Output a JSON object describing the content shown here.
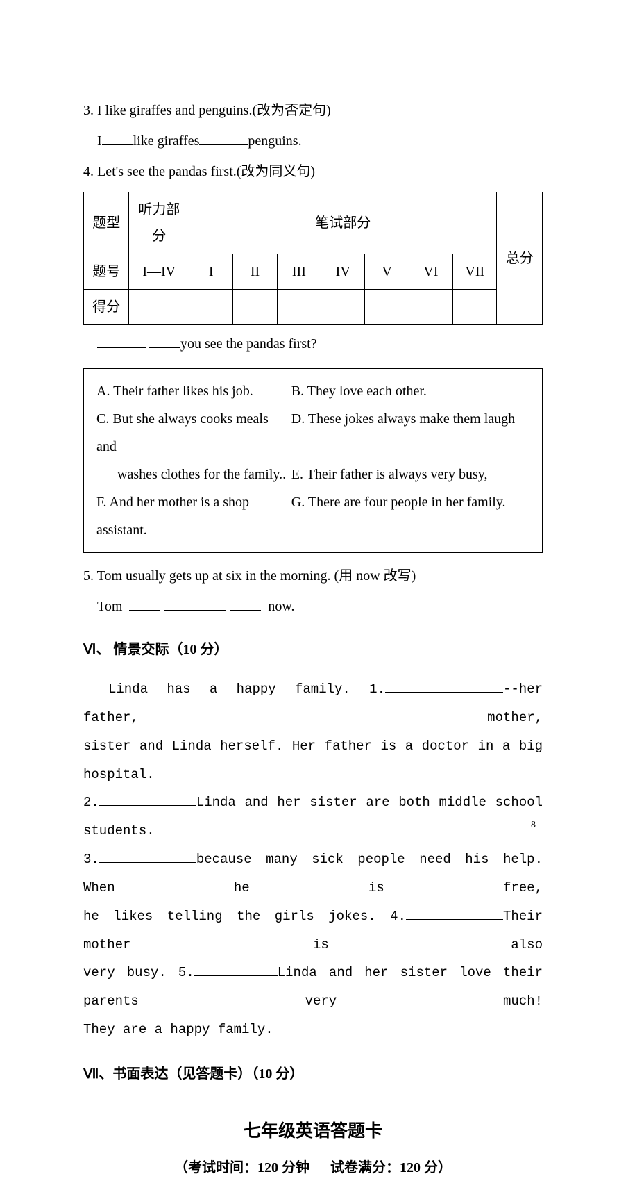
{
  "q3": {
    "prompt": "3. I like giraffes and penguins.(改为否定句)",
    "ans_prefix": "I",
    "ans_mid": "like giraffes",
    "ans_suffix": "penguins."
  },
  "q4": {
    "prompt": "4. Let's see the pandas first.(改为同义句)",
    "ans_suffix": "you see the pandas first?"
  },
  "score_table": {
    "row1": {
      "c0": "题型",
      "c1": "听力部分",
      "c2": "笔试部分",
      "c3": "总分"
    },
    "row2": {
      "c0": "题号",
      "c1": "I—IV",
      "cols": [
        "I",
        "II",
        "III",
        "IV",
        "V",
        "VI",
        "VII"
      ]
    },
    "row3": {
      "c0": "得分"
    }
  },
  "options": {
    "A": "A. Their father likes his job.",
    "B": "B. They love each other.",
    "C": "C. But she always cooks meals and",
    "C2": "washes clothes for the family..",
    "D": "D. These jokes always make them laugh",
    "E": "E. Their father is always very busy,",
    "F": "F. And her mother is a shop assistant.",
    "G": "G. There are four people in her family."
  },
  "q5": {
    "prompt": "5. Tom usually gets up at six in the morning. (用 now 改写)",
    "ans_prefix": "Tom",
    "ans_suffix": "now."
  },
  "sec6": {
    "heading": "Ⅵ、 情景交际（10 分）"
  },
  "passage": {
    "l1a": "Linda has a happy family. 1.",
    "l1b": "--her father, mother,",
    "l2": "sister and Linda herself. Her father is a doctor in a big hospital.",
    "l3a": "2.",
    "l3b": "Linda and her sister are both middle school students.",
    "l4a": "3.",
    "l4b": "because many sick people need his help. When he is free,",
    "l5a": "he likes telling the girls jokes. 4.",
    "l5b": "Their mother is also",
    "l6a": "very busy. 5.",
    "l6b": "Linda and her sister love their parents very much!",
    "l7": "They are a happy family."
  },
  "sec7": {
    "heading": "Ⅶ、书面表达（见答题卡）（10 分）"
  },
  "title": {
    "main": "七年级英语答题卡",
    "sub_a": "（考试时间：120 分钟",
    "sub_b": "试卷满分：120 分）"
  },
  "page": "8"
}
